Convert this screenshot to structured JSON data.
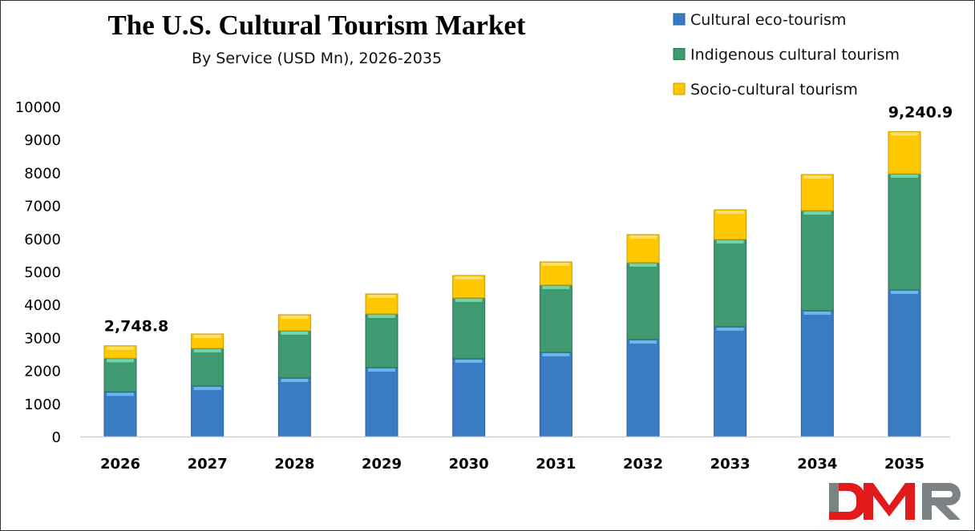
{
  "chart_data": {
    "type": "bar",
    "stacked": true,
    "title": "The U.S. Cultural Tourism Market",
    "subtitle": "By Service (USD Mn), 2026-2035",
    "xlabel": "",
    "ylabel": "",
    "ylim": [
      0,
      10000
    ],
    "yticks": [
      0,
      1000,
      2000,
      3000,
      4000,
      5000,
      6000,
      7000,
      8000,
      9000,
      10000
    ],
    "grid": false,
    "legend_position": "top-right",
    "categories": [
      "2026",
      "2027",
      "2028",
      "2029",
      "2030",
      "2031",
      "2032",
      "2033",
      "2034",
      "2035"
    ],
    "series": [
      {
        "name": "Cultural eco-tourism",
        "color": "#3a7cc4",
        "values": [
          1350,
          1530,
          1772,
          2087,
          2354,
          2549,
          2937,
          3325,
          3811,
          4442
        ]
      },
      {
        "name": "Indigenous cultural tourism",
        "color": "#3f9a72",
        "values": [
          1020,
          1140,
          1432,
          1627,
          1845,
          2038,
          2330,
          2646,
          3034,
          3519
        ]
      },
      {
        "name": "Socio-cultural tourism",
        "color": "#ffc800",
        "values": [
          379,
          437,
          485,
          606,
          680,
          704,
          850,
          898,
          1092,
          1280
        ]
      }
    ],
    "annotations": [
      {
        "category": "2026",
        "text": "2,748.8"
      },
      {
        "category": "2035",
        "text": "9,240.9"
      }
    ]
  },
  "logo": {
    "text": "DMR"
  }
}
